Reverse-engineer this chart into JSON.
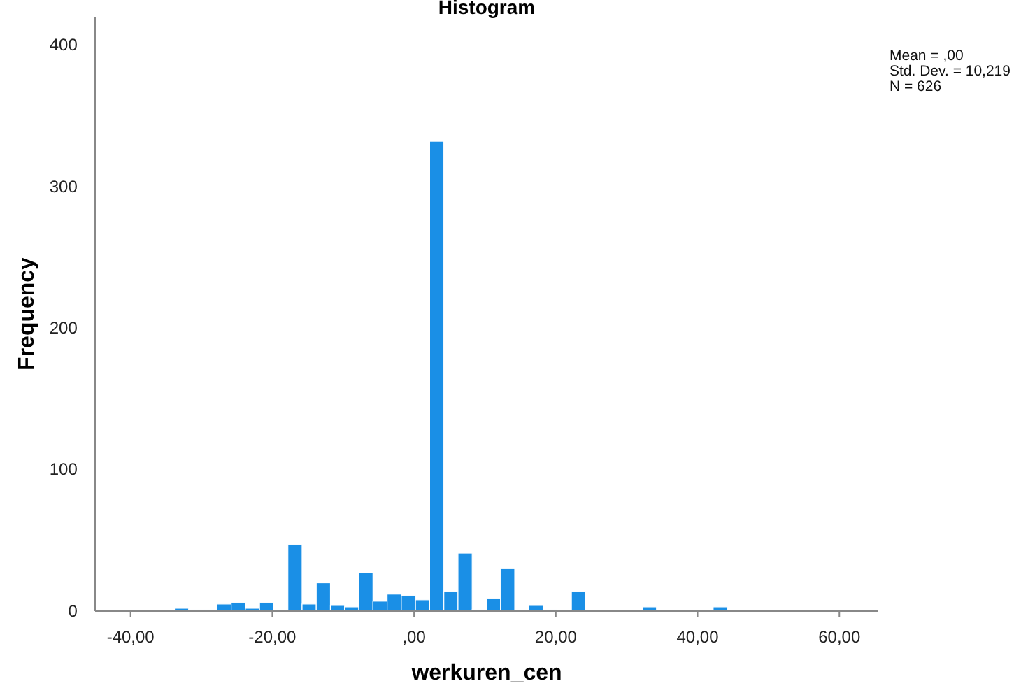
{
  "chart_data": {
    "type": "histogram",
    "title": "Histogram",
    "xlabel": "werkuren_cen",
    "ylabel": "Frequency",
    "bins": [
      -33.8,
      -31.8,
      -29.8,
      -27.8,
      -25.8,
      -23.8,
      -21.8,
      -19.8,
      -17.8,
      -15.8,
      -13.8,
      -11.8,
      -9.8,
      -7.8,
      -5.8,
      -3.8,
      -1.8,
      0.2,
      2.2,
      4.2,
      6.2,
      8.2,
      10.2,
      12.2,
      14.2,
      16.2,
      18.2,
      20.2,
      22.2,
      24.2,
      26.2,
      28.2,
      30.2,
      32.2,
      34.2,
      36.2,
      38.2,
      40.2,
      42.2,
      44.2
    ],
    "values": [
      2,
      1,
      1,
      5,
      6,
      2,
      6,
      0,
      47,
      5,
      20,
      4,
      3,
      27,
      7,
      12,
      11,
      8,
      332,
      14,
      41,
      1,
      9,
      30,
      0,
      4,
      1,
      0,
      14,
      0,
      0,
      0,
      0,
      3,
      0,
      0,
      0,
      0,
      3
    ],
    "color": "#1a8fe6",
    "xlim": [
      -45,
      65.5
    ],
    "ylim": [
      0,
      420
    ],
    "xticks": [
      {
        "value": -40,
        "label": "-40,00"
      },
      {
        "value": -20,
        "label": "-20,00"
      },
      {
        "value": 0,
        "label": ",00"
      },
      {
        "value": 20,
        "label": "20,00"
      },
      {
        "value": 40,
        "label": "40,00"
      },
      {
        "value": 60,
        "label": "60,00"
      }
    ],
    "yticks": [
      0,
      100,
      200,
      300,
      400
    ],
    "annotations": [
      "Mean = ,00",
      "Std. Dev. = 10,219",
      "N = 626"
    ],
    "grid": false
  }
}
